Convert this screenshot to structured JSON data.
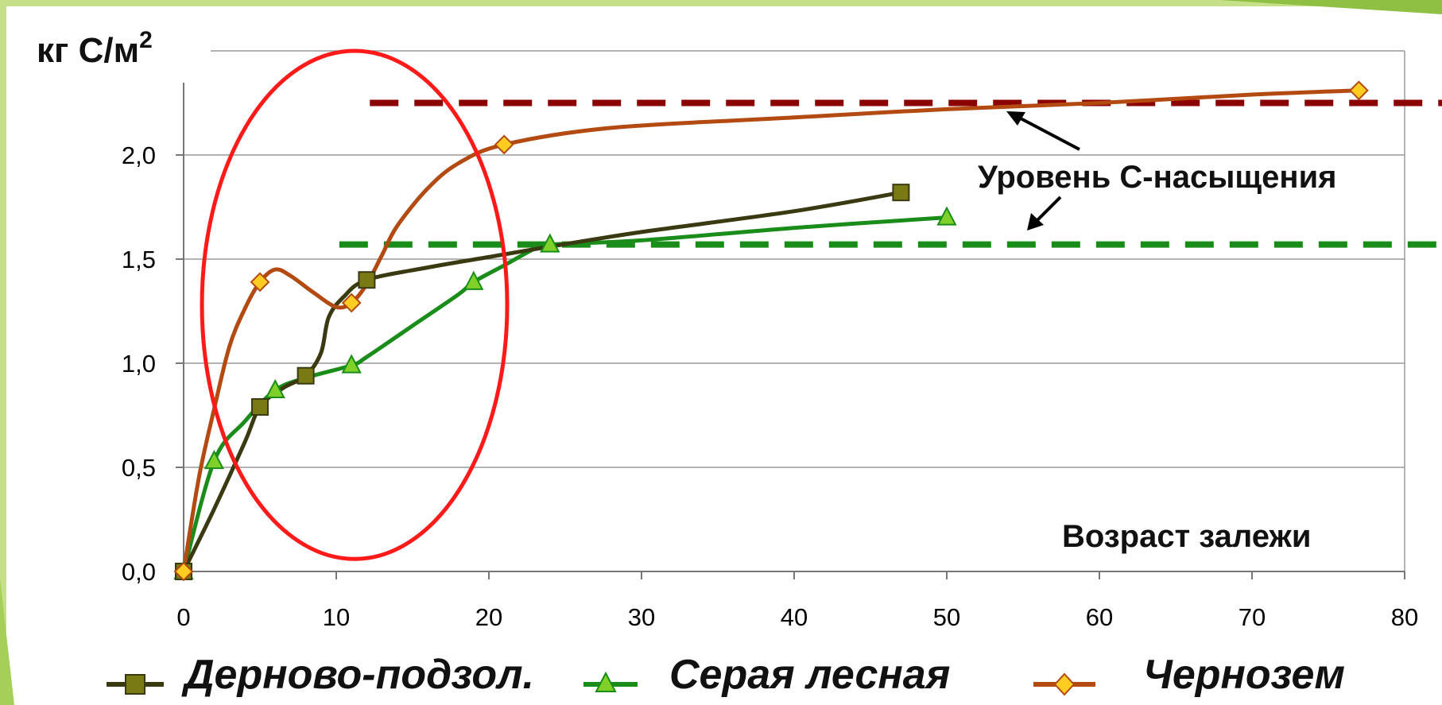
{
  "chart_data": {
    "type": "line",
    "y_unit_label": "кг С/м",
    "y_unit_superscript": "2",
    "x_annotation": "Возраст залежи",
    "saturation_label": "Уровень С-насыщения",
    "xlim": [
      0,
      80
    ],
    "ylim": [
      0,
      2.5
    ],
    "x_ticks": [
      "0",
      "10",
      "20",
      "30",
      "40",
      "50",
      "60",
      "70",
      "80"
    ],
    "y_ticks": [
      "0,0",
      "0,5",
      "1,0",
      "1,5",
      "2,0"
    ],
    "grid": "horizontal",
    "legend_position": "bottom",
    "series": [
      {
        "name": "Дерново-подзол.",
        "color": "#3a3a12",
        "marker": "square",
        "marker_color": "#7a7a14",
        "points": [
          [
            0,
            0.0
          ],
          [
            5,
            0.79
          ],
          [
            8,
            0.94
          ],
          [
            12,
            1.4
          ],
          [
            47,
            1.82
          ]
        ],
        "curve": [
          [
            0,
            0.0
          ],
          [
            2,
            0.3
          ],
          [
            4,
            0.62
          ],
          [
            5,
            0.79
          ],
          [
            6.5,
            0.88
          ],
          [
            8,
            0.94
          ],
          [
            9,
            1.05
          ],
          [
            9.5,
            1.22
          ],
          [
            10.5,
            1.32
          ],
          [
            12,
            1.4
          ],
          [
            16,
            1.46
          ],
          [
            20,
            1.51
          ],
          [
            24,
            1.56
          ],
          [
            30,
            1.63
          ],
          [
            40,
            1.73
          ],
          [
            47,
            1.82
          ]
        ]
      },
      {
        "name": "Серая лесная",
        "color": "#1a8c1a",
        "marker": "triangle",
        "marker_color": "#7fd12a",
        "points": [
          [
            0,
            0.0
          ],
          [
            2,
            0.53
          ],
          [
            6,
            0.87
          ],
          [
            11,
            0.99
          ],
          [
            19,
            1.39
          ],
          [
            24,
            1.57
          ],
          [
            50,
            1.7
          ]
        ],
        "curve": [
          [
            0,
            0.0
          ],
          [
            2,
            0.53
          ],
          [
            4,
            0.72
          ],
          [
            6,
            0.87
          ],
          [
            8,
            0.93
          ],
          [
            11,
            0.99
          ],
          [
            12,
            1.03
          ],
          [
            15,
            1.18
          ],
          [
            18,
            1.33
          ],
          [
            19,
            1.39
          ],
          [
            21,
            1.47
          ],
          [
            23,
            1.55
          ],
          [
            24,
            1.57
          ],
          [
            30,
            1.59
          ],
          [
            40,
            1.65
          ],
          [
            50,
            1.7
          ]
        ]
      },
      {
        "name": "Чернозем",
        "color": "#b24a12",
        "marker": "diamond",
        "marker_color": "#ffcc22",
        "points": [
          [
            0,
            0.0
          ],
          [
            5,
            1.39
          ],
          [
            11,
            1.29
          ],
          [
            21,
            2.05
          ],
          [
            77,
            2.31
          ]
        ],
        "curve": [
          [
            0,
            0.0
          ],
          [
            1,
            0.45
          ],
          [
            2,
            0.78
          ],
          [
            3,
            1.08
          ],
          [
            4,
            1.26
          ],
          [
            5,
            1.39
          ],
          [
            6,
            1.45
          ],
          [
            7,
            1.42
          ],
          [
            8.5,
            1.34
          ],
          [
            10,
            1.27
          ],
          [
            11,
            1.29
          ],
          [
            12,
            1.38
          ],
          [
            13,
            1.52
          ],
          [
            14,
            1.66
          ],
          [
            16,
            1.84
          ],
          [
            18,
            1.96
          ],
          [
            21,
            2.05
          ],
          [
            28,
            2.13
          ],
          [
            40,
            2.18
          ],
          [
            50,
            2.22
          ],
          [
            60,
            2.25
          ],
          [
            70,
            2.29
          ],
          [
            77,
            2.31
          ]
        ]
      }
    ],
    "saturation_levels": [
      {
        "y": 2.25,
        "x_start": 12.2,
        "color": "#8b0000"
      },
      {
        "y": 1.57,
        "x_start": 10.2,
        "color": "#1a8c1a"
      }
    ],
    "highlight": {
      "shape": "ellipse",
      "color": "#ff1a1a",
      "center": [
        11.2,
        1.28
      ],
      "radii": [
        10,
        1.22
      ]
    }
  }
}
